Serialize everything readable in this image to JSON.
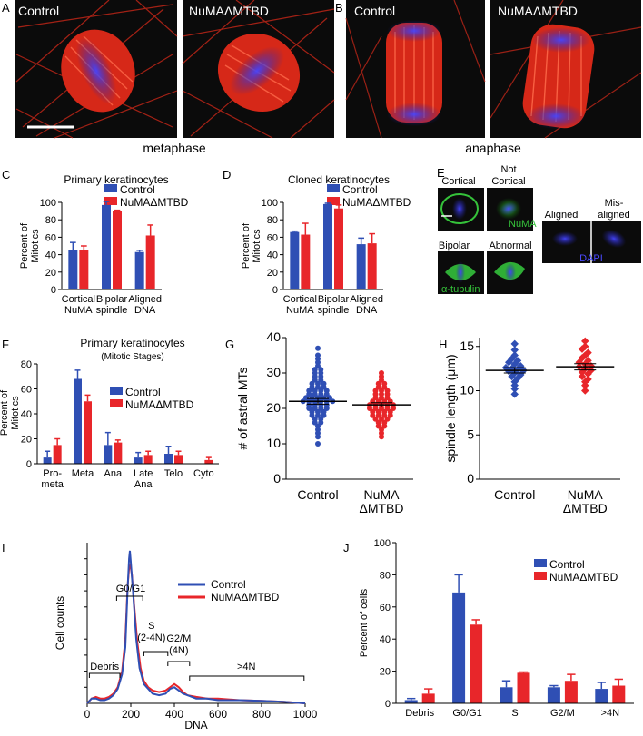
{
  "colors": {
    "control": "#2f4fb4",
    "numa": "#e8262a",
    "micro_bg": "#0b0b0b",
    "micro_red": "#e8281e",
    "micro_blue": "#3a3ad8",
    "micro_green": "#35c23a"
  },
  "panel_letters": {
    "A": "A",
    "B": "B",
    "C": "C",
    "D": "D",
    "E": "E",
    "F": "F",
    "G": "G",
    "H": "H",
    "I": "I",
    "J": "J"
  },
  "micrographs": {
    "A_left": "Control",
    "A_right": "NuMAΔMTBD",
    "B_left": "Control",
    "B_right": "NuMAΔMTBD",
    "A_caption": "metaphase",
    "B_caption": "anaphase",
    "E_labels": {
      "cortical": "Cortical",
      "not_cortical_1": "Not",
      "not_cortical_2": "Cortical",
      "numa": "NuMA",
      "bipolar": "Bipolar",
      "abnormal": "Abnormal",
      "tubulin": "α-tubulin",
      "aligned": "Aligned",
      "misaligned_1": "Mis-",
      "misaligned_2": "aligned",
      "dapi": "DAPI"
    }
  },
  "legend": {
    "control": "Control",
    "numa": "NuMAΔMTBD"
  },
  "chart_data": [
    {
      "id": "C",
      "type": "bar",
      "title": "Primary keratinocytes",
      "ylabel": "Percent of Mitotics",
      "ylim": [
        0,
        100
      ],
      "yticks": [
        0,
        20,
        40,
        60,
        80,
        100
      ],
      "categories": [
        [
          "Cortical",
          "NuMA"
        ],
        [
          "Bipolar",
          "spindle"
        ],
        [
          "Aligned",
          "DNA"
        ]
      ],
      "series": [
        {
          "name": "Control",
          "values": [
            45,
            97,
            43
          ],
          "errors": [
            9,
            4,
            2
          ]
        },
        {
          "name": "NuMAΔMTBD",
          "values": [
            45,
            90,
            62
          ],
          "errors": [
            5,
            1,
            12
          ]
        }
      ]
    },
    {
      "id": "D",
      "type": "bar",
      "title": "Cloned keratinocytes",
      "ylabel": "Percent of Mitotics",
      "ylim": [
        0,
        100
      ],
      "yticks": [
        0,
        20,
        40,
        60,
        80,
        100
      ],
      "categories": [
        [
          "Cortical",
          "NuMA"
        ],
        [
          "Bipolar",
          "spindle"
        ],
        [
          "Aligned",
          "DNA"
        ]
      ],
      "series": [
        {
          "name": "Control",
          "values": [
            66,
            98,
            52
          ],
          "errors": [
            1,
            1,
            7
          ]
        },
        {
          "name": "NuMAΔMTBD",
          "values": [
            63,
            93,
            53
          ],
          "errors": [
            13,
            4,
            11
          ]
        }
      ]
    },
    {
      "id": "F",
      "type": "bar",
      "title": "Primary keratinocytes",
      "subtitle": "(Mitotic Stages)",
      "ylabel": "Percent of Mitotics",
      "ylim": [
        0,
        80
      ],
      "yticks": [
        0,
        20,
        40,
        60,
        80
      ],
      "categories": [
        [
          "Pro-",
          "meta"
        ],
        [
          "Meta"
        ],
        [
          "Ana"
        ],
        [
          "Late",
          "Ana"
        ],
        [
          "Telo"
        ],
        [
          "Cyto"
        ]
      ],
      "series": [
        {
          "name": "Control",
          "values": [
            5,
            68,
            15,
            5,
            8,
            0
          ],
          "errors": [
            5,
            7,
            10,
            4,
            6,
            0
          ]
        },
        {
          "name": "NuMAΔMTBD",
          "values": [
            15,
            50,
            17,
            7,
            7,
            3
          ],
          "errors": [
            5,
            5,
            2,
            3,
            3,
            2
          ]
        }
      ]
    },
    {
      "id": "G",
      "type": "scatter",
      "ylabel": "# of astral MTs",
      "ylim": [
        0,
        40
      ],
      "yticks": [
        0,
        10,
        20,
        30,
        40
      ],
      "ytick_labels": [
        "0",
        "10",
        "20",
        "30",
        "40"
      ],
      "categories": [
        [
          "Control"
        ],
        [
          "NuMA",
          "ΔMTBD"
        ]
      ],
      "series": [
        {
          "name": "Control",
          "mean": 22,
          "sem": 0.8,
          "values": [
            37,
            35,
            34,
            33,
            32,
            31,
            31,
            30,
            30,
            29,
            29,
            28,
            28,
            27,
            27,
            27,
            26,
            26,
            26,
            25,
            25,
            25,
            25,
            24,
            24,
            24,
            24,
            23,
            23,
            23,
            23,
            23,
            22,
            22,
            22,
            22,
            22,
            22,
            21,
            21,
            21,
            21,
            20,
            20,
            20,
            20,
            19,
            19,
            19,
            18,
            18,
            18,
            17,
            17,
            16,
            16,
            15,
            14,
            13,
            12,
            10
          ]
        },
        {
          "name": "NuMAΔMTBD",
          "mean": 21,
          "sem": 0.6,
          "values": [
            30,
            29,
            28,
            27,
            27,
            26,
            26,
            25,
            25,
            25,
            24,
            24,
            24,
            23,
            23,
            23,
            22,
            22,
            22,
            22,
            21,
            21,
            21,
            21,
            21,
            20,
            20,
            20,
            20,
            20,
            19,
            19,
            19,
            19,
            18,
            18,
            18,
            18,
            17,
            17,
            17,
            16,
            16,
            15,
            15,
            14,
            13,
            12
          ]
        }
      ]
    },
    {
      "id": "H",
      "type": "scatter",
      "ylabel": "spindle length (μm)",
      "ylim": [
        0,
        16
      ],
      "yticks": [
        0,
        5,
        10,
        15
      ],
      "categories": [
        [
          "Control"
        ],
        [
          "NuMA",
          "ΔMTBD"
        ]
      ],
      "series": [
        {
          "name": "Control",
          "mean": 12.3,
          "sem": 0.3,
          "values": [
            15.3,
            14.6,
            14.0,
            13.6,
            13.4,
            13.2,
            13.0,
            12.8,
            12.6,
            12.5,
            12.4,
            12.3,
            12.2,
            12.0,
            11.8,
            11.6,
            11.4,
            11.0,
            10.6,
            10.2,
            9.6
          ]
        },
        {
          "name": "NuMAΔMTBD",
          "mean": 12.7,
          "sem": 0.35,
          "values": [
            15.6,
            15.0,
            14.7,
            14.3,
            14.0,
            13.7,
            13.4,
            13.2,
            13.0,
            12.8,
            12.7,
            12.5,
            12.3,
            12.1,
            11.9,
            11.6,
            11.3,
            11.0,
            10.6,
            10.0
          ]
        }
      ]
    },
    {
      "id": "I",
      "type": "line",
      "xlabel": "DNA",
      "ylabel": "Cell counts",
      "xlim": [
        0,
        1000
      ],
      "xticks": [
        0,
        200,
        400,
        600,
        800,
        1000
      ],
      "ylim": [
        0,
        100
      ],
      "series": [
        {
          "name": "Control",
          "points": [
            [
              0,
              0
            ],
            [
              20,
              3
            ],
            [
              40,
              3
            ],
            [
              60,
              2
            ],
            [
              80,
              2
            ],
            [
              100,
              3
            ],
            [
              120,
              5
            ],
            [
              140,
              9
            ],
            [
              160,
              18
            ],
            [
              175,
              35
            ],
            [
              185,
              70
            ],
            [
              192,
              90
            ],
            [
              196,
              95
            ],
            [
              200,
              88
            ],
            [
              210,
              70
            ],
            [
              225,
              40
            ],
            [
              240,
              22
            ],
            [
              260,
              12
            ],
            [
              280,
              9
            ],
            [
              300,
              6
            ],
            [
              330,
              5
            ],
            [
              360,
              6
            ],
            [
              380,
              9
            ],
            [
              400,
              10
            ],
            [
              420,
              8
            ],
            [
              440,
              6
            ],
            [
              460,
              5
            ],
            [
              500,
              3
            ],
            [
              550,
              3
            ],
            [
              600,
              2
            ],
            [
              700,
              2
            ],
            [
              800,
              1.5
            ],
            [
              900,
              1
            ],
            [
              1000,
              0
            ]
          ]
        },
        {
          "name": "NuMAΔMTBD",
          "points": [
            [
              0,
              0
            ],
            [
              20,
              3
            ],
            [
              40,
              4
            ],
            [
              60,
              3
            ],
            [
              80,
              3
            ],
            [
              100,
              4
            ],
            [
              120,
              6
            ],
            [
              140,
              10
            ],
            [
              160,
              20
            ],
            [
              175,
              40
            ],
            [
              185,
              72
            ],
            [
              192,
              84
            ],
            [
              198,
              86
            ],
            [
              205,
              80
            ],
            [
              215,
              62
            ],
            [
              230,
              38
            ],
            [
              245,
              22
            ],
            [
              260,
              14
            ],
            [
              280,
              10
            ],
            [
              300,
              8
            ],
            [
              330,
              7
            ],
            [
              360,
              8
            ],
            [
              380,
              10
            ],
            [
              400,
              12
            ],
            [
              420,
              10
            ],
            [
              440,
              7
            ],
            [
              460,
              5
            ],
            [
              500,
              4
            ],
            [
              550,
              3
            ],
            [
              600,
              3
            ],
            [
              700,
              2
            ],
            [
              800,
              1.5
            ],
            [
              900,
              1
            ],
            [
              1000,
              0
            ]
          ]
        }
      ],
      "annotations": [
        "Debris",
        "G0/G1",
        "S",
        "(2-4N)",
        "G2/M",
        "(4N)",
        ">4N"
      ]
    },
    {
      "id": "J",
      "type": "bar",
      "ylabel": "Percent of cells",
      "ylim": [
        0,
        100
      ],
      "yticks": [
        0,
        20,
        40,
        60,
        80,
        100
      ],
      "categories": [
        [
          "Debris"
        ],
        [
          "G0/G1"
        ],
        [
          "S"
        ],
        [
          "G2/M"
        ],
        [
          ">4N"
        ]
      ],
      "series": [
        {
          "name": "Control",
          "values": [
            2,
            69,
            10,
            10,
            9
          ],
          "errors": [
            1,
            11,
            4,
            1,
            4
          ]
        },
        {
          "name": "NuMAΔMTBD",
          "values": [
            6,
            49,
            19,
            14,
            11
          ],
          "errors": [
            3,
            3,
            0.5,
            4,
            4
          ]
        }
      ]
    }
  ]
}
